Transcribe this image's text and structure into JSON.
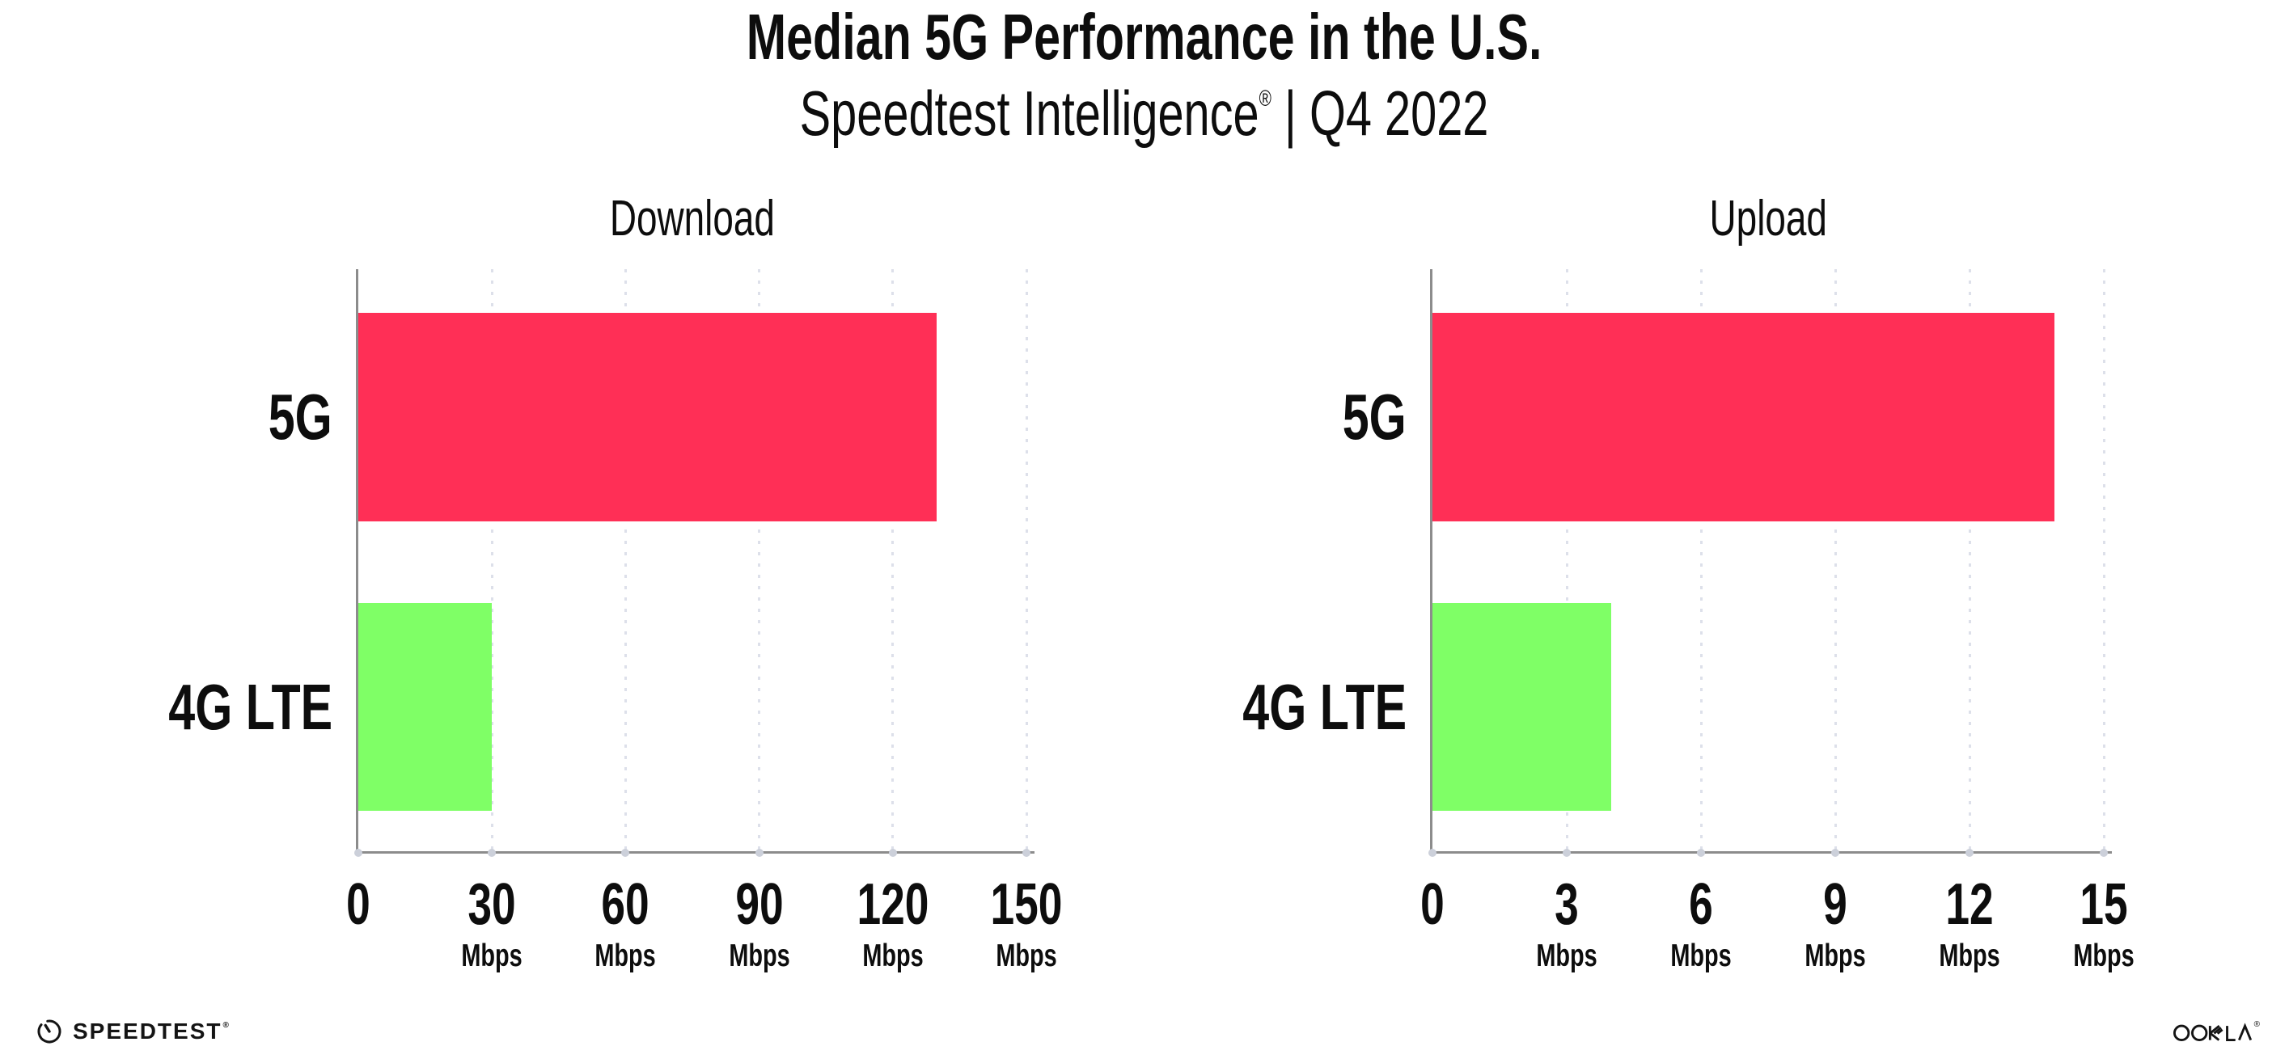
{
  "header": {
    "title": "Median 5G Performance in the U.S.",
    "subtitle_product": "Speedtest Intelligence",
    "subtitle_reg": "®",
    "subtitle_separator": " | ",
    "subtitle_period": "Q4 2022"
  },
  "charts": [
    {
      "title": "Download",
      "axis_unit": "Mbps",
      "max": 150,
      "ticks": [
        {
          "label": "0",
          "unit": ""
        },
        {
          "label": "30",
          "unit": "Mbps"
        },
        {
          "label": "60",
          "unit": "Mbps"
        },
        {
          "label": "90",
          "unit": "Mbps"
        },
        {
          "label": "120",
          "unit": "Mbps"
        },
        {
          "label": "150",
          "unit": "Mbps"
        }
      ],
      "bars": [
        {
          "label": "5G",
          "value": 129.8,
          "color": "#ff2f56"
        },
        {
          "label": "4G LTE",
          "value": 29.9,
          "color": "#7fff66"
        }
      ]
    },
    {
      "title": "Upload",
      "axis_unit": "Mbps",
      "max": 15,
      "ticks": [
        {
          "label": "0",
          "unit": ""
        },
        {
          "label": "3",
          "unit": "Mbps"
        },
        {
          "label": "6",
          "unit": "Mbps"
        },
        {
          "label": "9",
          "unit": "Mbps"
        },
        {
          "label": "12",
          "unit": "Mbps"
        },
        {
          "label": "15",
          "unit": "Mbps"
        }
      ],
      "bars": [
        {
          "label": "5G",
          "value": 13.9,
          "color": "#ff2f56"
        },
        {
          "label": "4G LTE",
          "value": 4.0,
          "color": "#7fff66"
        }
      ]
    }
  ],
  "footer": {
    "speedtest_label": "SPEEDTEST",
    "speedtest_mark": "®",
    "ookla_label": "OOKLA",
    "ookla_mark": "®"
  },
  "colors": {
    "bar_5g": "#ff2f56",
    "bar_4g_lte": "#7fff66",
    "axis": "#8c8c8c",
    "gridline_dots": "#dde0ea",
    "text": "#0d0d0d"
  },
  "chart_data": [
    {
      "type": "bar",
      "orientation": "horizontal",
      "title": "Download",
      "categories": [
        "5G",
        "4G LTE"
      ],
      "values": [
        129.8,
        29.9
      ],
      "unit": "Mbps",
      "xlim": [
        0,
        150
      ],
      "xticks": [
        0,
        30,
        60,
        90,
        120,
        150
      ],
      "colors": [
        "#ff2f56",
        "#7fff66"
      ],
      "grid": "vertical-dotted",
      "legend": "none"
    },
    {
      "type": "bar",
      "orientation": "horizontal",
      "title": "Upload",
      "categories": [
        "5G",
        "4G LTE"
      ],
      "values": [
        13.9,
        4.0
      ],
      "unit": "Mbps",
      "xlim": [
        0,
        15
      ],
      "xticks": [
        0,
        3,
        6,
        9,
        12,
        15
      ],
      "colors": [
        "#ff2f56",
        "#7fff66"
      ],
      "grid": "vertical-dotted",
      "legend": "none"
    }
  ]
}
